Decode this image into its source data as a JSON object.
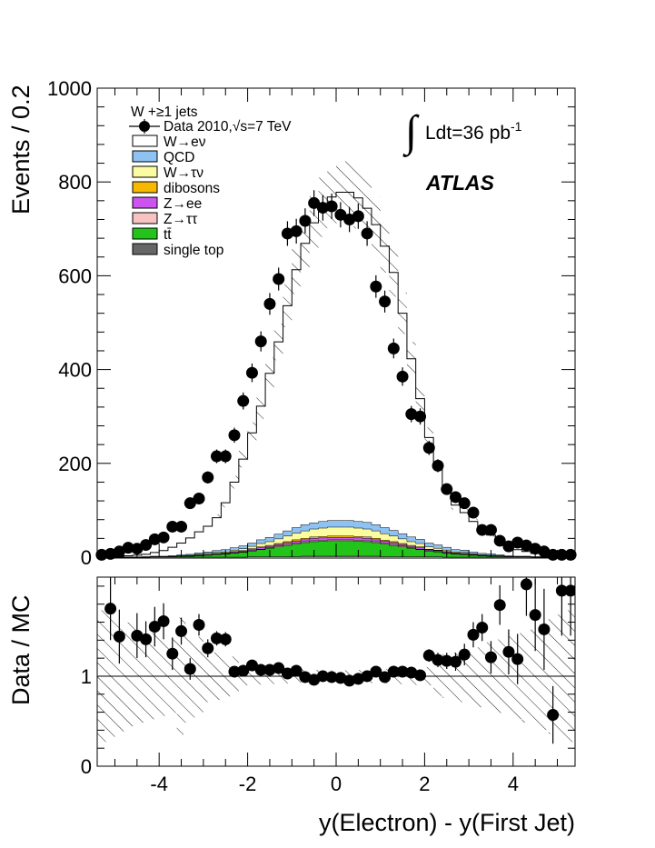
{
  "chart_data": [
    {
      "type": "bar",
      "panel": "main",
      "stacked": true,
      "ylabel": "Events / 0.2",
      "ylim": [
        0,
        1000
      ],
      "yticks": [
        "0",
        "200",
        "400",
        "600",
        "800",
        "1000"
      ],
      "bin_edges": [
        -5.4,
        -5.2,
        -5.0,
        -4.8,
        -4.6,
        -4.4,
        -4.2,
        -4.0,
        -3.8,
        -3.6,
        -3.4,
        -3.2,
        -3.0,
        -2.8,
        -2.6,
        -2.4,
        -2.2,
        -2.0,
        -1.8,
        -1.6,
        -1.4,
        -1.2,
        -1.0,
        -0.8,
        -0.6,
        -0.4,
        -0.2,
        0.0,
        0.2,
        0.4,
        0.6,
        0.8,
        1.0,
        1.2,
        1.4,
        1.6,
        1.8,
        2.0,
        2.2,
        2.4,
        2.6,
        2.8,
        3.0,
        3.2,
        3.4,
        3.6,
        3.8,
        4.0,
        4.2,
        4.4,
        4.6,
        4.8,
        5.0,
        5.2,
        5.4
      ],
      "legend_header": "W +≥1 jets",
      "legend": [
        {
          "label": "Data 2010,√s=7 TeV",
          "color": "#000000",
          "style": "marker"
        },
        {
          "label": "W→eν",
          "color": "#ffffff",
          "style": "box"
        },
        {
          "label": "QCD",
          "color": "#8ec2f2",
          "style": "box"
        },
        {
          "label": "W→τν",
          "color": "#fbfba0",
          "style": "box"
        },
        {
          "label": "dibosons",
          "color": "#f7b800",
          "style": "box"
        },
        {
          "label": "Z→ee",
          "color": "#cc55f0",
          "style": "box"
        },
        {
          "label": "Z→ττ",
          "color": "#f7c2c2",
          "style": "box"
        },
        {
          "label": "tt̄",
          "color": "#22c41a",
          "style": "box"
        },
        {
          "label": "single top",
          "color": "#666666",
          "style": "box"
        }
      ],
      "series": [
        {
          "name": "single top",
          "color": "#666666",
          "values": [
            0,
            0,
            0,
            0,
            0,
            0,
            0,
            0,
            0,
            0,
            0,
            0,
            0,
            0,
            0,
            0,
            0,
            1,
            1,
            1,
            1,
            1,
            1,
            2,
            2,
            2,
            2,
            2,
            2,
            2,
            2,
            2,
            1,
            1,
            1,
            1,
            1,
            1,
            1,
            0,
            0,
            0,
            0,
            0,
            0,
            0,
            0,
            0,
            0,
            0,
            0,
            0,
            0,
            0
          ]
        },
        {
          "name": "tt̄",
          "color": "#22c41a",
          "values": [
            0,
            0,
            0,
            0,
            0,
            0,
            1,
            1,
            1,
            2,
            2,
            3,
            4,
            5,
            6,
            8,
            10,
            12,
            15,
            18,
            21,
            24,
            27,
            29,
            31,
            32,
            33,
            33,
            33,
            32,
            31,
            29,
            27,
            24,
            21,
            18,
            15,
            12,
            10,
            8,
            6,
            5,
            4,
            3,
            2,
            2,
            1,
            1,
            1,
            0,
            0,
            0,
            0,
            0
          ]
        },
        {
          "name": "Z→ττ",
          "color": "#f7c2c2",
          "values": [
            0,
            0,
            0,
            0,
            0,
            0,
            0,
            0,
            0,
            0,
            0,
            0,
            0,
            1,
            1,
            1,
            1,
            1,
            1,
            1,
            2,
            2,
            2,
            2,
            2,
            2,
            2,
            2,
            2,
            2,
            2,
            2,
            2,
            2,
            2,
            1,
            1,
            1,
            1,
            1,
            1,
            1,
            0,
            0,
            0,
            0,
            0,
            0,
            0,
            0,
            0,
            0,
            0,
            0
          ]
        },
        {
          "name": "Z→ee",
          "color": "#cc55f0",
          "values": [
            0,
            0,
            0,
            0,
            0,
            0,
            0,
            0,
            0,
            0,
            1,
            1,
            1,
            1,
            1,
            2,
            2,
            2,
            3,
            3,
            3,
            4,
            4,
            4,
            5,
            5,
            5,
            5,
            5,
            5,
            5,
            4,
            4,
            4,
            3,
            3,
            3,
            2,
            2,
            2,
            1,
            1,
            1,
            1,
            1,
            0,
            0,
            0,
            0,
            0,
            0,
            0,
            0,
            0
          ]
        },
        {
          "name": "dibosons",
          "color": "#f7b800",
          "values": [
            0,
            0,
            0,
            0,
            0,
            0,
            0,
            0,
            0,
            0,
            0,
            1,
            1,
            1,
            1,
            1,
            1,
            2,
            2,
            2,
            2,
            2,
            3,
            3,
            3,
            3,
            3,
            3,
            3,
            3,
            3,
            3,
            2,
            2,
            2,
            2,
            2,
            1,
            1,
            1,
            1,
            1,
            1,
            0,
            0,
            0,
            0,
            0,
            0,
            0,
            0,
            0,
            0,
            0
          ]
        },
        {
          "name": "W→τν",
          "color": "#fbfba0",
          "values": [
            0,
            0,
            0,
            0,
            0,
            0,
            0,
            0,
            1,
            1,
            1,
            1,
            2,
            2,
            2,
            3,
            4,
            5,
            7,
            8,
            10,
            12,
            14,
            16,
            17,
            18,
            19,
            19,
            19,
            18,
            17,
            16,
            14,
            12,
            10,
            8,
            7,
            5,
            4,
            3,
            2,
            2,
            1,
            1,
            1,
            1,
            0,
            0,
            0,
            0,
            0,
            0,
            0,
            0
          ]
        },
        {
          "name": "QCD",
          "color": "#8ec2f2",
          "values": [
            0,
            0,
            0,
            0,
            0,
            1,
            1,
            1,
            1,
            2,
            2,
            3,
            3,
            4,
            5,
            5,
            6,
            7,
            8,
            9,
            10,
            11,
            12,
            13,
            13,
            14,
            14,
            14,
            14,
            14,
            14,
            13,
            13,
            12,
            11,
            10,
            9,
            8,
            7,
            6,
            5,
            5,
            4,
            3,
            3,
            2,
            2,
            1,
            1,
            1,
            1,
            0,
            0,
            0
          ]
        },
        {
          "name": "W→eν",
          "color": "#ffffff",
          "values": [
            1,
            1,
            2,
            3,
            4,
            5,
            8,
            12,
            18,
            25,
            35,
            45,
            55,
            70,
            100,
            140,
            185,
            235,
            285,
            350,
            410,
            480,
            550,
            600,
            640,
            670,
            690,
            700,
            700,
            690,
            670,
            640,
            600,
            550,
            470,
            380,
            300,
            225,
            170,
            125,
            95,
            80,
            65,
            50,
            40,
            30,
            20,
            14,
            10,
            7,
            5,
            4,
            3,
            2
          ]
        }
      ],
      "data_points": {
        "x": [
          -5.3,
          -5.1,
          -4.9,
          -4.7,
          -4.5,
          -4.3,
          -4.1,
          -3.9,
          -3.7,
          -3.5,
          -3.3,
          -3.1,
          -2.9,
          -2.7,
          -2.5,
          -2.3,
          -2.1,
          -1.9,
          -1.7,
          -1.5,
          -1.3,
          -1.1,
          -0.9,
          -0.7,
          -0.5,
          -0.3,
          -0.1,
          0.1,
          0.3,
          0.5,
          0.7,
          0.9,
          1.1,
          1.3,
          1.5,
          1.7,
          1.9,
          2.1,
          2.3,
          2.5,
          2.7,
          2.9,
          3.1,
          3.3,
          3.5,
          3.7,
          3.9,
          4.1,
          4.3,
          4.5,
          4.7,
          4.9,
          5.1,
          5.3
        ],
        "y": [
          5,
          7,
          12,
          20,
          18,
          26,
          38,
          42,
          65,
          65,
          115,
          125,
          170,
          215,
          215,
          260,
          333,
          393,
          460,
          540,
          593,
          690,
          695,
          717,
          755,
          745,
          748,
          730,
          720,
          727,
          690,
          577,
          545,
          445,
          385,
          305,
          300,
          233,
          195,
          145,
          128,
          115,
          95,
          58,
          58,
          35,
          23,
          31,
          25,
          18,
          12,
          5,
          5,
          5
        ]
      }
    },
    {
      "type": "scatter",
      "panel": "ratio",
      "ylabel": "Data / MC",
      "xlabel": "y(Electron) - y(First Jet)",
      "xlim": [
        -5.4,
        5.4
      ],
      "ylim": [
        0,
        2.1
      ],
      "xticks": [
        "-4",
        "-2",
        "0",
        "2",
        "4"
      ],
      "yticks": [
        "0",
        "1"
      ],
      "x": [
        -5.1,
        -4.9,
        -4.5,
        -4.3,
        -4.1,
        -3.9,
        -3.7,
        -3.5,
        -3.3,
        -3.1,
        -2.9,
        -2.7,
        -2.5,
        -2.3,
        -2.1,
        -1.9,
        -1.7,
        -1.5,
        -1.3,
        -1.1,
        -0.9,
        -0.7,
        -0.5,
        -0.3,
        -0.1,
        0.1,
        0.3,
        0.5,
        0.7,
        0.9,
        1.1,
        1.3,
        1.5,
        1.7,
        1.9,
        2.1,
        2.3,
        2.5,
        2.7,
        2.9,
        3.1,
        3.3,
        3.5,
        3.7,
        3.9,
        4.1,
        4.3,
        4.5,
        4.7,
        4.9,
        5.1,
        5.3
      ],
      "y": [
        1.75,
        1.44,
        1.45,
        1.41,
        1.55,
        1.61,
        1.25,
        1.5,
        1.08,
        1.57,
        1.31,
        1.42,
        1.41,
        1.05,
        1.06,
        1.12,
        1.07,
        1.07,
        1.09,
        1.03,
        1.06,
        0.99,
        0.96,
        1.0,
        0.99,
        0.98,
        0.95,
        0.97,
        1.0,
        1.05,
        0.99,
        1.05,
        1.05,
        1.04,
        1.01,
        1.23,
        1.18,
        1.17,
        1.16,
        1.24,
        1.46,
        1.54,
        1.21,
        1.79,
        1.27,
        1.19,
        2.02,
        1.68,
        1.52,
        0.57,
        1.95,
        1.95
      ],
      "err": [
        0.35,
        0.3,
        0.25,
        0.2,
        0.22,
        0.2,
        0.18,
        0.15,
        0.12,
        0.12,
        0.1,
        0.08,
        0.08,
        0.06,
        0.05,
        0.05,
        0.04,
        0.04,
        0.04,
        0.04,
        0.03,
        0.03,
        0.03,
        0.03,
        0.03,
        0.03,
        0.03,
        0.03,
        0.03,
        0.03,
        0.04,
        0.04,
        0.05,
        0.05,
        0.06,
        0.07,
        0.08,
        0.09,
        0.1,
        0.12,
        0.14,
        0.15,
        0.18,
        0.22,
        0.25,
        0.28,
        0.35,
        0.4,
        0.45,
        0.32,
        0.5,
        0.5
      ]
    }
  ],
  "annotations": {
    "lumi_prefix": "∫",
    "lumi_text": "Ldt=36 pb",
    "lumi_sup": "-1",
    "experiment": "ATLAS"
  }
}
